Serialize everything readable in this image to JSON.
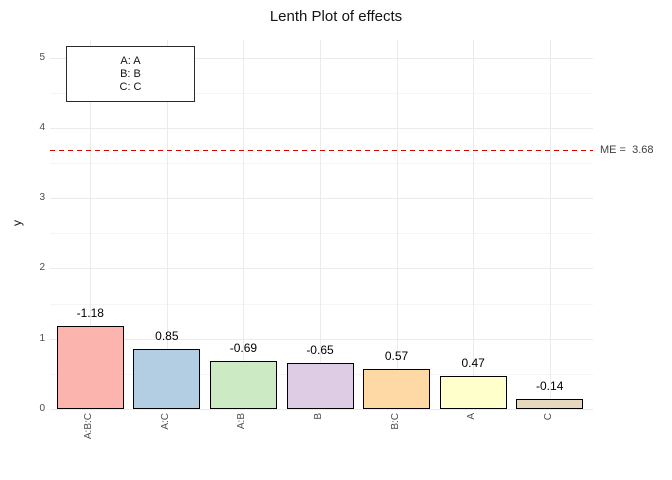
{
  "title": "Lenth Plot of effects",
  "legend": {
    "lines": [
      "A: A",
      "B: B",
      "C: C"
    ]
  },
  "chart_data": {
    "type": "bar",
    "title": "Lenth Plot of effects",
    "xlabel": "",
    "ylabel": "y",
    "categories": [
      "A:B:C",
      "A:C",
      "A:B",
      "B",
      "B:C",
      "A",
      "C"
    ],
    "values": [
      -1.18,
      0.85,
      -0.69,
      -0.65,
      0.57,
      0.47,
      -0.14
    ],
    "bar_labels": [
      "-1.18",
      "0.85",
      "-0.69",
      "-0.65",
      "0.57",
      "0.47",
      "-0.14"
    ],
    "bar_heights_are_absolute_values": true,
    "bar_colors": [
      "#FBB4AE",
      "#B3CDE3",
      "#CCEBC5",
      "#DECBE4",
      "#FED9A6",
      "#FFFFCC",
      "#E5D8BD"
    ],
    "bar_border_color": "#000000",
    "ylim": [
      0,
      5.25
    ],
    "yticks": [
      "0",
      "1",
      "2",
      "3",
      "4",
      "5"
    ],
    "yticks_minor": [
      0.5,
      1.5,
      2.5,
      3.5,
      4.5
    ],
    "grid": true,
    "grid_color_major": "#EBEBEB",
    "grid_color_minor": "#F5F5F5",
    "legend_position": "top-left inside panel",
    "reference_line": {
      "value": 3.68,
      "label": "ME =  3.68",
      "style": "dashed",
      "color": "#E10000"
    }
  }
}
